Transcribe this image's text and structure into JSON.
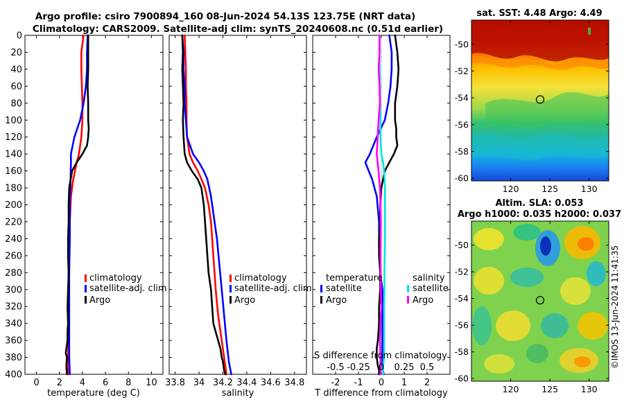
{
  "header": {
    "line1": "Argo profile: csiro 7900894_160 08-Jun-2024 54.13S 123.75E (NRT data)",
    "line2": "Climatology: CARS2009. Satellite-adj clim: synTS_20240608.nc (0.51d earlier)"
  },
  "footer_stamp": "©IMOS 13-Jun-2024 11:41:35",
  "colors": {
    "climatology": "#ff0000",
    "satellite_adj": "#0000ff",
    "argo": "#000000",
    "salinity_satellite": "#00e5e5",
    "salinity_argo": "#ff00ff",
    "zero_line": "#555555"
  },
  "chart_data": [
    {
      "id": "temperature",
      "type": "line",
      "xlabel": "temperature (deg C)",
      "ylabel": "",
      "xlim": [
        -1,
        11
      ],
      "ylim": [
        0,
        400
      ],
      "y_reversed": true,
      "xticks": [
        0,
        2,
        4,
        6,
        8,
        10
      ],
      "xtick_labels": [
        "0",
        "2",
        "4",
        "6",
        "8",
        "10"
      ],
      "yticks": [
        0,
        20,
        40,
        60,
        80,
        100,
        120,
        140,
        160,
        180,
        200,
        220,
        240,
        260,
        280,
        300,
        320,
        340,
        360,
        380,
        400
      ],
      "ytick_labels": [
        "0",
        "20",
        "40",
        "60",
        "80",
        "100",
        "120",
        "140",
        "160",
        "180",
        "200",
        "220",
        "240",
        "260",
        "280",
        "300",
        "320",
        "340",
        "360",
        "380",
        "400"
      ],
      "legend": {
        "placement": "lower-right",
        "entries": [
          "climatology",
          "satellite-adj. clim",
          "Argo"
        ]
      },
      "series": [
        {
          "name": "climatology",
          "color_key": "climatology",
          "x": [
            4.1,
            3.9,
            3.9,
            3.95,
            4.0,
            4.0,
            3.9,
            3.7,
            3.5,
            3.2,
            3.0,
            2.9,
            2.85,
            2.8,
            2.8,
            2.8,
            2.8,
            2.8,
            2.75,
            2.7,
            2.75
          ],
          "y": [
            0,
            20,
            40,
            60,
            80,
            100,
            120,
            140,
            150,
            170,
            190,
            220,
            250,
            280,
            300,
            320,
            340,
            360,
            380,
            390,
            400
          ]
        },
        {
          "name": "satellite-adj. clim",
          "color_key": "satellite_adj",
          "x": [
            4.45,
            4.4,
            4.4,
            4.3,
            4.1,
            3.8,
            3.3,
            3.0,
            3.0,
            2.95,
            2.9,
            2.9,
            2.85,
            2.85,
            2.85,
            2.85,
            2.85,
            2.85,
            2.9
          ],
          "y": [
            0,
            20,
            40,
            60,
            80,
            100,
            120,
            140,
            150,
            180,
            200,
            240,
            280,
            300,
            320,
            340,
            360,
            380,
            400
          ]
        },
        {
          "name": "Argo",
          "color_key": "argo",
          "x": [
            4.5,
            4.5,
            4.5,
            4.45,
            4.5,
            4.5,
            4.55,
            4.5,
            4.4,
            4.0,
            3.5,
            3.1,
            2.85,
            2.8,
            2.8,
            2.75,
            2.75,
            2.8,
            2.75,
            2.7,
            2.75,
            2.7,
            2.7,
            2.6,
            2.55,
            2.65,
            2.6,
            2.65
          ],
          "y": [
            0,
            20,
            40,
            60,
            80,
            100,
            110,
            120,
            130,
            140,
            150,
            160,
            180,
            200,
            220,
            240,
            260,
            280,
            300,
            320,
            340,
            350,
            360,
            370,
            375,
            380,
            390,
            400
          ]
        }
      ]
    },
    {
      "id": "salinity",
      "type": "line",
      "xlabel": "salinity",
      "xlim": [
        33.75,
        34.9
      ],
      "ylim": [
        0,
        400
      ],
      "y_reversed": true,
      "xticks": [
        33.8,
        34,
        34.2,
        34.4,
        34.6,
        34.8
      ],
      "xtick_labels": [
        "33.8",
        "34",
        "34.2",
        "34.4",
        "34.6",
        "34.8"
      ],
      "yticks": [
        0,
        20,
        40,
        60,
        80,
        100,
        120,
        140,
        160,
        180,
        200,
        220,
        240,
        260,
        280,
        300,
        320,
        340,
        360,
        380,
        400
      ],
      "legend": {
        "placement": "lower-right",
        "entries": [
          "climatology",
          "satellite-adj. clim",
          "Argo"
        ]
      },
      "series": [
        {
          "name": "climatology",
          "color_key": "climatology",
          "x": [
            33.88,
            33.885,
            33.89,
            33.89,
            33.895,
            33.895,
            33.9,
            33.92,
            33.95,
            33.99,
            34.02,
            34.05,
            34.08,
            34.1,
            34.12,
            34.14,
            34.16,
            34.18,
            34.2,
            34.22,
            34.23
          ],
          "y": [
            0,
            20,
            40,
            60,
            80,
            100,
            120,
            140,
            150,
            160,
            170,
            180,
            200,
            220,
            260,
            300,
            330,
            350,
            370,
            390,
            400
          ]
        },
        {
          "name": "satellite-adj. clim",
          "color_key": "satellite_adj",
          "x": [
            33.86,
            33.87,
            33.87,
            33.88,
            33.88,
            33.89,
            33.9,
            33.95,
            34.0,
            34.04,
            34.07,
            34.1,
            34.12,
            34.15,
            34.17,
            34.19,
            34.21,
            34.23,
            34.25,
            34.27
          ],
          "y": [
            0,
            20,
            40,
            60,
            80,
            100,
            120,
            140,
            150,
            160,
            170,
            190,
            210,
            240,
            270,
            300,
            330,
            360,
            385,
            400
          ]
        },
        {
          "name": "Argo",
          "color_key": "argo",
          "x": [
            33.86,
            33.865,
            33.86,
            33.865,
            33.87,
            33.865,
            33.87,
            33.88,
            33.9,
            33.94,
            33.99,
            34.02,
            34.04,
            34.05,
            34.06,
            34.07,
            34.08,
            34.1,
            34.11,
            34.12,
            34.14,
            34.16,
            34.18,
            34.19,
            34.2,
            34.21,
            34.22
          ],
          "y": [
            0,
            20,
            40,
            60,
            80,
            100,
            120,
            140,
            150,
            160,
            170,
            180,
            200,
            220,
            240,
            260,
            280,
            300,
            320,
            340,
            350,
            360,
            370,
            380,
            385,
            395,
            400
          ]
        }
      ]
    },
    {
      "id": "difference",
      "type": "line",
      "xlabel": "T difference from climatology",
      "top_xlabel": "S difference from climatology",
      "xlim": [
        -3,
        3
      ],
      "ylim": [
        0,
        400
      ],
      "y_reversed": true,
      "xticks": [
        -2,
        -1,
        0,
        1,
        2
      ],
      "xtick_labels": [
        "-2",
        "-1",
        "0",
        "1",
        "2"
      ],
      "top_xticks": [
        -0.5,
        -0.25,
        0,
        0.25,
        0.5
      ],
      "top_xtick_labels": [
        "-0.5",
        "-0.25",
        "0",
        "0.25",
        "0.5"
      ],
      "top_xlim": [
        -0.75,
        0.75
      ],
      "yticks": [
        0,
        20,
        40,
        60,
        80,
        100,
        120,
        140,
        160,
        180,
        200,
        220,
        240,
        260,
        280,
        300,
        320,
        340,
        360,
        380,
        400
      ],
      "legend": {
        "placement": "lower-center",
        "temperature_header": "temperature",
        "salinity_header": "salinity",
        "temperature_entries": [
          "satellite",
          "Argo"
        ],
        "salinity_entries": [
          "satellite",
          "Argo"
        ]
      },
      "series": [
        {
          "name": "T satellite",
          "axis": "T",
          "color_key": "satellite_adj",
          "x": [
            0.35,
            0.45,
            0.45,
            0.4,
            0.3,
            0.15,
            -0.2,
            -0.5,
            -0.7,
            -0.4,
            -0.2,
            -0.1,
            -0.1,
            -0.05,
            0.05,
            0.05,
            0.05,
            0.05,
            0.05,
            0.05,
            0.1
          ],
          "y": [
            0,
            20,
            40,
            60,
            80,
            100,
            120,
            140,
            150,
            170,
            190,
            220,
            250,
            280,
            300,
            320,
            340,
            360,
            380,
            390,
            400
          ]
        },
        {
          "name": "T Argo",
          "axis": "T",
          "color_key": "argo",
          "x": [
            0.6,
            0.7,
            0.75,
            0.7,
            0.6,
            0.6,
            0.65,
            0.65,
            0.7,
            0.55,
            0.35,
            0.15,
            0.0,
            -0.05,
            -0.05,
            -0.1,
            -0.1,
            -0.05,
            -0.05,
            -0.1,
            -0.1,
            -0.15,
            -0.2,
            -0.2,
            -0.15,
            -0.1,
            -0.1
          ],
          "y": [
            0,
            20,
            40,
            60,
            80,
            100,
            110,
            120,
            130,
            140,
            150,
            160,
            180,
            200,
            220,
            240,
            260,
            280,
            300,
            320,
            340,
            360,
            370,
            380,
            390,
            395,
            400
          ]
        },
        {
          "name": "S satellite",
          "axis": "S",
          "color_key": "salinity_satellite",
          "x": [
            -0.02,
            -0.02,
            -0.02,
            -0.015,
            -0.015,
            -0.01,
            -0.01,
            0.0,
            0.02,
            0.03,
            0.04,
            0.04,
            0.04,
            0.035,
            0.035,
            0.03,
            0.03,
            0.03,
            0.03,
            0.02,
            0.02
          ],
          "y": [
            0,
            20,
            40,
            60,
            80,
            100,
            120,
            140,
            150,
            160,
            180,
            200,
            240,
            270,
            300,
            320,
            340,
            360,
            380,
            390,
            400
          ]
        },
        {
          "name": "S Argo",
          "axis": "S",
          "color_key": "salinity_argo",
          "x": [
            -0.02,
            -0.02,
            -0.03,
            -0.02,
            -0.015,
            -0.03,
            -0.04,
            -0.05,
            -0.04,
            -0.03,
            -0.015,
            -0.01,
            -0.005,
            -0.01,
            -0.005,
            0.0,
            -0.01,
            -0.015,
            -0.01,
            -0.01
          ],
          "y": [
            0,
            20,
            40,
            60,
            80,
            100,
            120,
            140,
            150,
            160,
            180,
            200,
            220,
            260,
            300,
            320,
            340,
            360,
            380,
            400
          ]
        }
      ]
    },
    {
      "id": "sst_map",
      "type": "heatmap",
      "title": "sat. SST: 4.48 Argo: 4.49",
      "sat_sst": 4.48,
      "argo_temperature": 4.49,
      "xlim": [
        115,
        132.5
      ],
      "ylim": [
        -60.2,
        -48.2
      ],
      "xticks": [
        120,
        125,
        130
      ],
      "xtick_labels": [
        "120",
        "125",
        "130"
      ],
      "yticks": [
        -50,
        -52,
        -54,
        -56,
        -58,
        -60
      ],
      "ytick_labels": [
        "-50",
        "-52",
        "-54",
        "-56",
        "-58",
        "-60"
      ],
      "marker": {
        "lon": 123.75,
        "lat": -54.13
      }
    },
    {
      "id": "sla_map",
      "type": "heatmap",
      "title": "Altim. SLA: 0.053",
      "subtitle": "Argo h1000: 0.035 h2000: 0.037",
      "altim_sla": 0.053,
      "argo_h1000": 0.035,
      "argo_h2000": 0.037,
      "xlim": [
        115,
        132.5
      ],
      "ylim": [
        -60.2,
        -48.2
      ],
      "xticks": [
        120,
        125,
        130
      ],
      "xtick_labels": [
        "120",
        "125",
        "130"
      ],
      "yticks": [
        -50,
        -52,
        -54,
        -56,
        -58,
        -60
      ],
      "ytick_labels": [
        "-50",
        "-52",
        "-54",
        "-56",
        "-58",
        "-60"
      ],
      "marker": {
        "lon": 123.75,
        "lat": -54.13
      }
    }
  ]
}
